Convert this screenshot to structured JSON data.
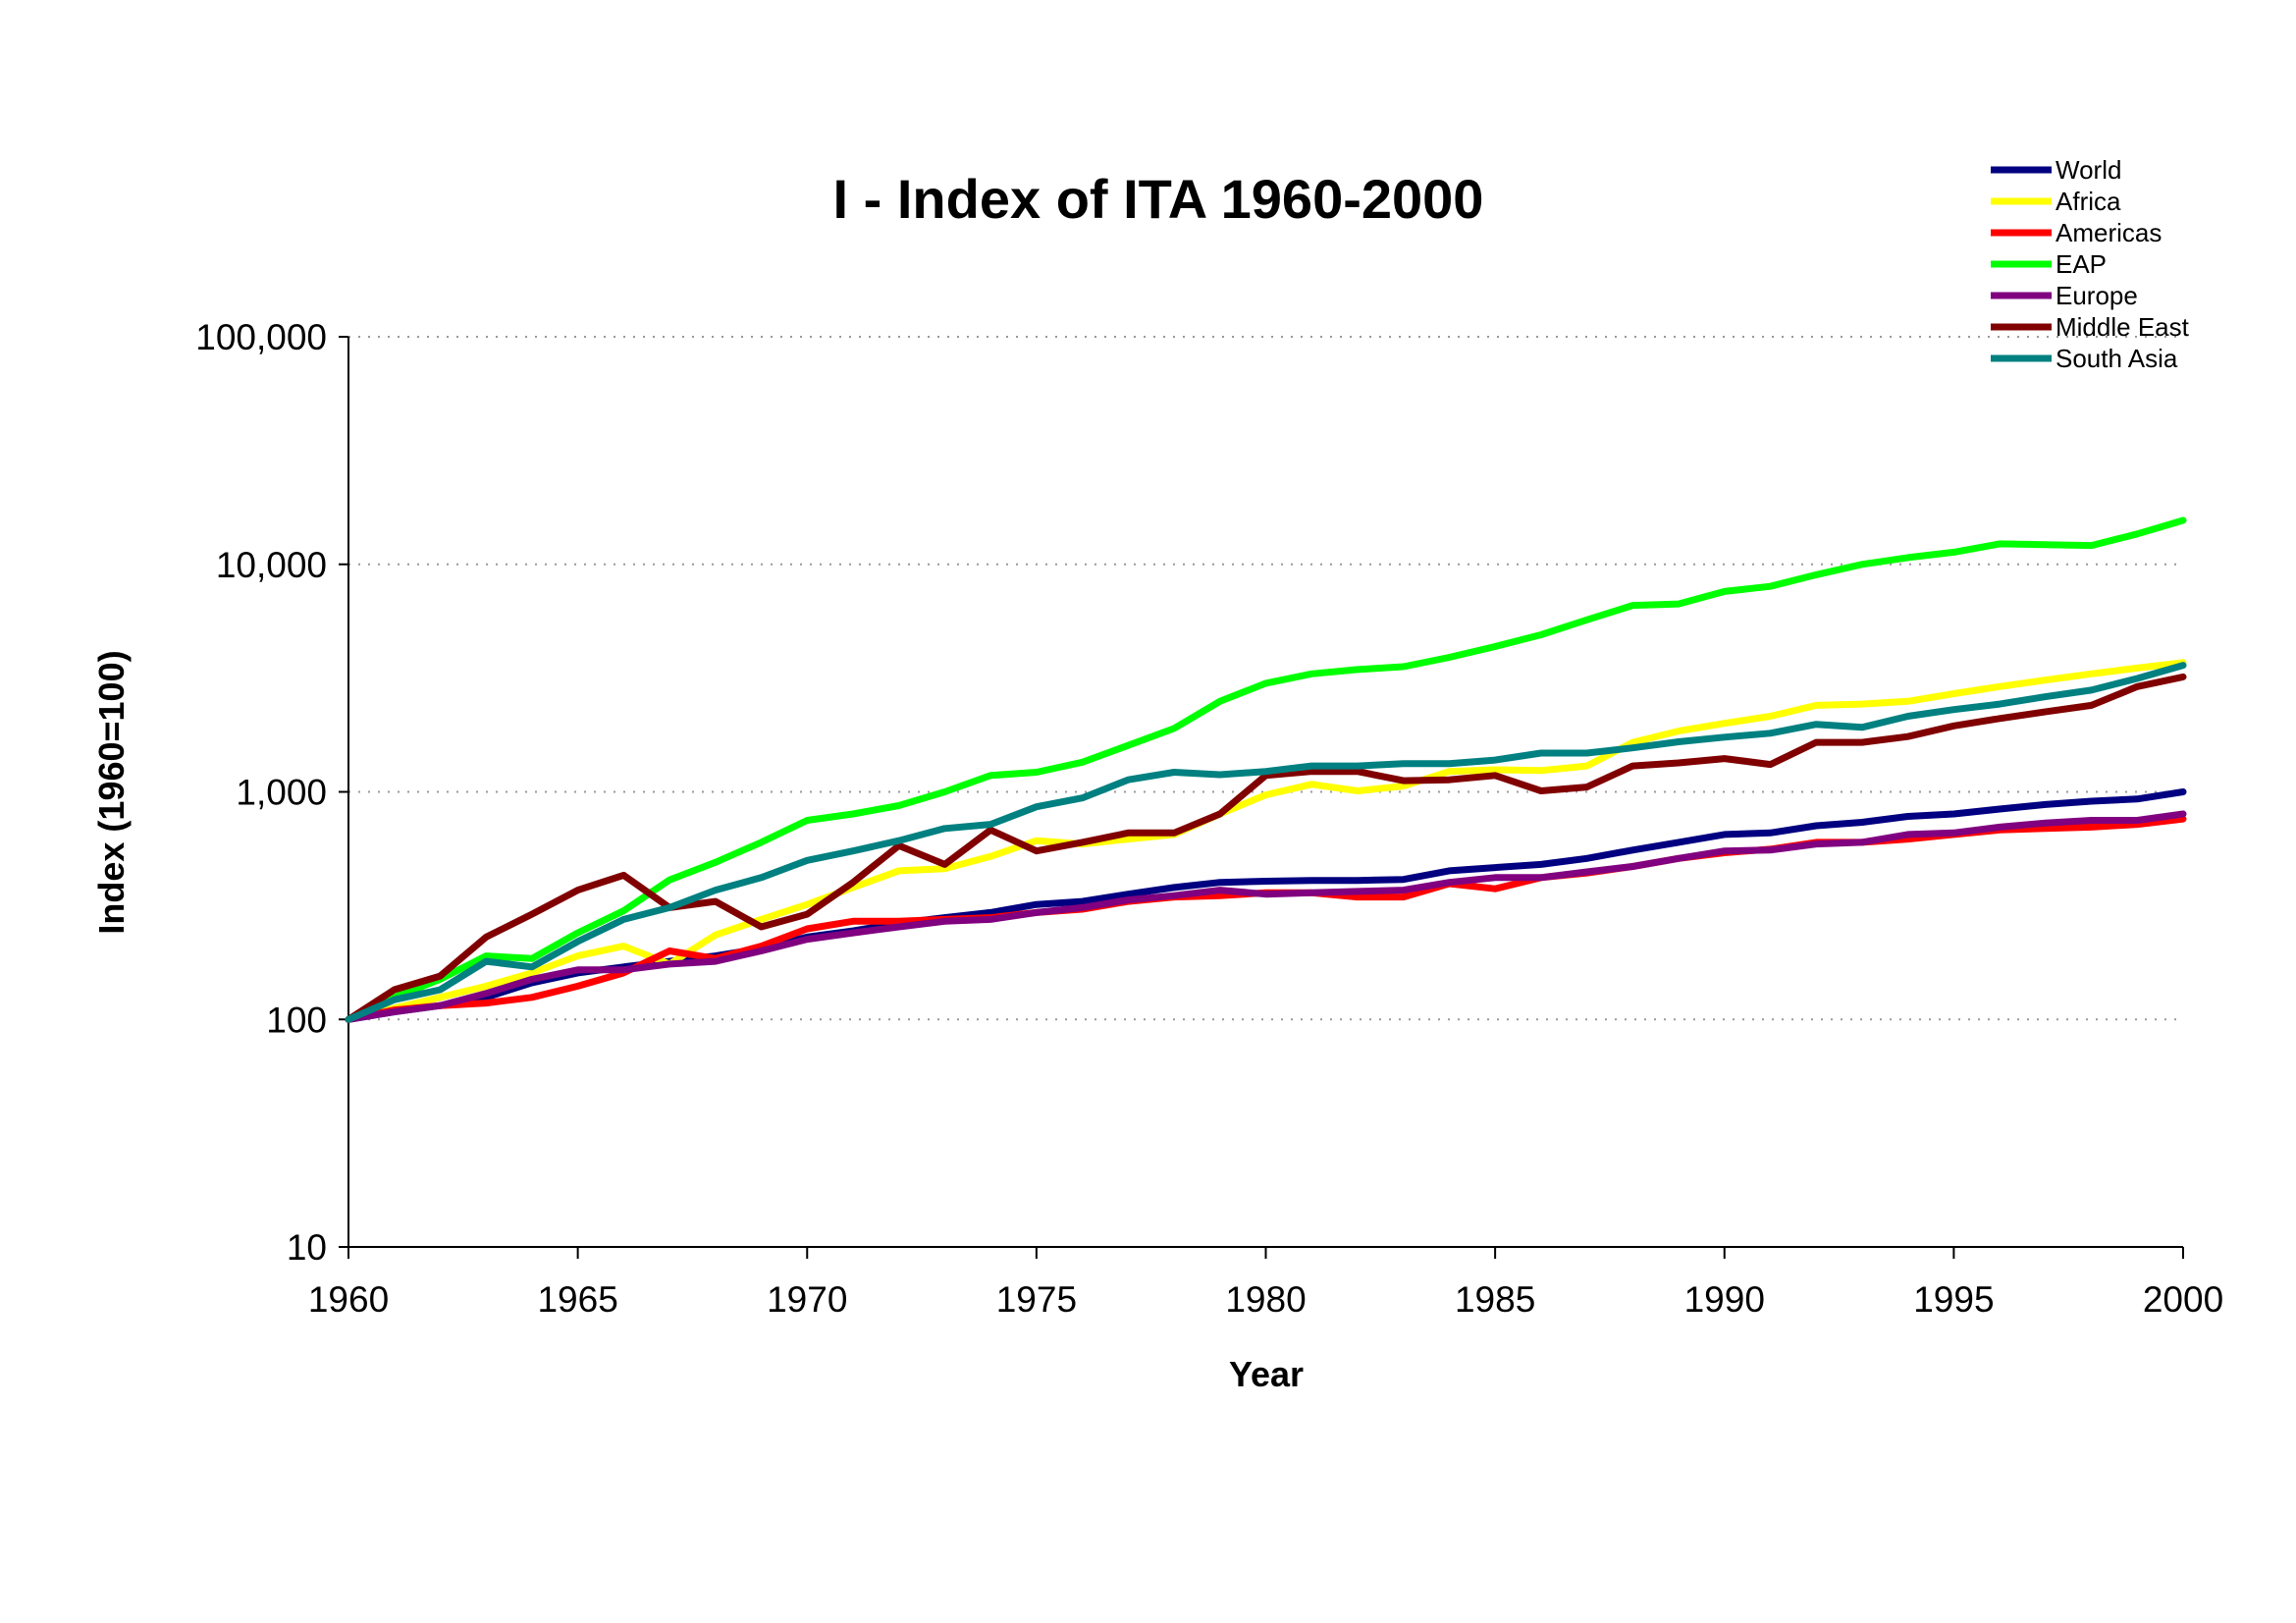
{
  "chart_data": {
    "type": "line",
    "title": "I - Index of ITA 1960-2000",
    "xlabel": "Year",
    "ylabel": "Index (1960=100)",
    "yscale": "log",
    "ylim": [
      10,
      100000
    ],
    "xlim": [
      1960,
      2000
    ],
    "x_ticks": [
      "1960",
      "1965",
      "1970",
      "1975",
      "1980",
      "1985",
      "1990",
      "1995",
      "2000"
    ],
    "y_ticks": [
      {
        "value": 10,
        "label": "10"
      },
      {
        "value": 100,
        "label": "100"
      },
      {
        "value": 1000,
        "label": "1,000"
      },
      {
        "value": 10000,
        "label": "10,000"
      },
      {
        "value": 100000,
        "label": "100,000"
      }
    ],
    "grid": "horizontal dotted",
    "legend_position": "top-right",
    "x": [
      1960,
      1961,
      1962,
      1963,
      1964,
      1965,
      1966,
      1967,
      1968,
      1969,
      1970,
      1971,
      1972,
      1973,
      1974,
      1975,
      1976,
      1977,
      1978,
      1979,
      1980,
      1981,
      1982,
      1983,
      1984,
      1985,
      1986,
      1987,
      1988,
      1989,
      1990,
      1991,
      1992,
      1993,
      1994,
      1995,
      1996,
      1997,
      1998,
      1999,
      2000
    ],
    "series": [
      {
        "name": "World",
        "color": "#000080",
        "values": [
          100,
          108,
          115,
          125,
          145,
          160,
          170,
          180,
          190,
          205,
          230,
          245,
          265,
          280,
          295,
          320,
          330,
          355,
          380,
          400,
          405,
          408,
          408,
          412,
          450,
          465,
          480,
          510,
          555,
          600,
          650,
          660,
          710,
          735,
          780,
          800,
          840,
          880,
          910,
          930,
          1000
        ]
      },
      {
        "name": "Africa",
        "color": "#FFFF00",
        "values": [
          100,
          112,
          125,
          140,
          160,
          190,
          210,
          175,
          235,
          275,
          320,
          380,
          450,
          460,
          520,
          610,
          590,
          620,
          650,
          800,
          970,
          1080,
          1010,
          1060,
          1230,
          1250,
          1240,
          1300,
          1650,
          1850,
          2000,
          2150,
          2400,
          2430,
          2500,
          2700,
          2900,
          3100,
          3300,
          3500,
          3700
        ]
      },
      {
        "name": "Americas",
        "color": "#FF0000",
        "values": [
          100,
          110,
          115,
          118,
          125,
          140,
          160,
          200,
          185,
          210,
          250,
          270,
          270,
          275,
          280,
          295,
          305,
          330,
          345,
          350,
          360,
          360,
          345,
          345,
          395,
          375,
          420,
          440,
          470,
          510,
          540,
          560,
          600,
          600,
          620,
          650,
          680,
          690,
          700,
          720,
          760
        ]
      },
      {
        "name": "EAP",
        "color": "#00FF00",
        "values": [
          100,
          125,
          150,
          190,
          185,
          240,
          300,
          410,
          490,
          600,
          750,
          800,
          870,
          1000,
          1180,
          1220,
          1350,
          1600,
          1900,
          2500,
          3000,
          3300,
          3450,
          3550,
          3900,
          4350,
          4900,
          5700,
          6600,
          6700,
          7600,
          8000,
          9000,
          10000,
          10700,
          11300,
          12300,
          12200,
          12100,
          13600,
          15600
        ]
      },
      {
        "name": "Europe",
        "color": "#800080",
        "values": [
          100,
          108,
          115,
          130,
          150,
          165,
          165,
          175,
          180,
          200,
          225,
          240,
          255,
          270,
          275,
          295,
          310,
          335,
          350,
          370,
          355,
          360,
          365,
          370,
          400,
          420,
          420,
          445,
          470,
          510,
          550,
          555,
          590,
          600,
          650,
          660,
          700,
          730,
          750,
          750,
          800
        ]
      },
      {
        "name": "Middle East",
        "color": "#800000",
        "values": [
          100,
          135,
          155,
          230,
          290,
          370,
          430,
          310,
          330,
          255,
          290,
          400,
          580,
          480,
          680,
          550,
          600,
          660,
          660,
          800,
          1180,
          1230,
          1230,
          1120,
          1130,
          1180,
          1010,
          1050,
          1300,
          1340,
          1400,
          1320,
          1650,
          1650,
          1750,
          1950,
          2100,
          2250,
          2400,
          2900,
          3200
        ]
      },
      {
        "name": "South Asia",
        "color": "#008080",
        "values": [
          100,
          122,
          135,
          180,
          170,
          220,
          275,
          310,
          370,
          420,
          500,
          550,
          610,
          690,
          720,
          860,
          940,
          1130,
          1220,
          1190,
          1230,
          1300,
          1300,
          1330,
          1330,
          1380,
          1480,
          1480,
          1560,
          1660,
          1740,
          1810,
          1980,
          1920,
          2150,
          2300,
          2430,
          2620,
          2800,
          3150,
          3600
        ]
      }
    ]
  }
}
